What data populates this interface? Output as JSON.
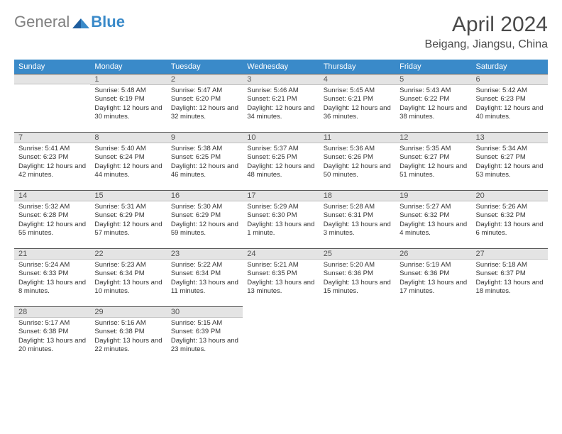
{
  "logo": {
    "general": "General",
    "blue": "Blue"
  },
  "title": "April 2024",
  "location": "Beigang, Jiangsu, China",
  "colors": {
    "header_bg": "#3a8ac9",
    "header_text": "#ffffff",
    "daybar_bg": "#e4e4e4",
    "daybar_border_top": "#5a5a5a",
    "text": "#333333",
    "title_text": "#4a4a4a"
  },
  "day_headers": [
    "Sunday",
    "Monday",
    "Tuesday",
    "Wednesday",
    "Thursday",
    "Friday",
    "Saturday"
  ],
  "weeks": [
    [
      {
        "n": "",
        "sr": "",
        "ss": "",
        "dl": ""
      },
      {
        "n": "1",
        "sr": "Sunrise: 5:48 AM",
        "ss": "Sunset: 6:19 PM",
        "dl": "Daylight: 12 hours and 30 minutes."
      },
      {
        "n": "2",
        "sr": "Sunrise: 5:47 AM",
        "ss": "Sunset: 6:20 PM",
        "dl": "Daylight: 12 hours and 32 minutes."
      },
      {
        "n": "3",
        "sr": "Sunrise: 5:46 AM",
        "ss": "Sunset: 6:21 PM",
        "dl": "Daylight: 12 hours and 34 minutes."
      },
      {
        "n": "4",
        "sr": "Sunrise: 5:45 AM",
        "ss": "Sunset: 6:21 PM",
        "dl": "Daylight: 12 hours and 36 minutes."
      },
      {
        "n": "5",
        "sr": "Sunrise: 5:43 AM",
        "ss": "Sunset: 6:22 PM",
        "dl": "Daylight: 12 hours and 38 minutes."
      },
      {
        "n": "6",
        "sr": "Sunrise: 5:42 AM",
        "ss": "Sunset: 6:23 PM",
        "dl": "Daylight: 12 hours and 40 minutes."
      }
    ],
    [
      {
        "n": "7",
        "sr": "Sunrise: 5:41 AM",
        "ss": "Sunset: 6:23 PM",
        "dl": "Daylight: 12 hours and 42 minutes."
      },
      {
        "n": "8",
        "sr": "Sunrise: 5:40 AM",
        "ss": "Sunset: 6:24 PM",
        "dl": "Daylight: 12 hours and 44 minutes."
      },
      {
        "n": "9",
        "sr": "Sunrise: 5:38 AM",
        "ss": "Sunset: 6:25 PM",
        "dl": "Daylight: 12 hours and 46 minutes."
      },
      {
        "n": "10",
        "sr": "Sunrise: 5:37 AM",
        "ss": "Sunset: 6:25 PM",
        "dl": "Daylight: 12 hours and 48 minutes."
      },
      {
        "n": "11",
        "sr": "Sunrise: 5:36 AM",
        "ss": "Sunset: 6:26 PM",
        "dl": "Daylight: 12 hours and 50 minutes."
      },
      {
        "n": "12",
        "sr": "Sunrise: 5:35 AM",
        "ss": "Sunset: 6:27 PM",
        "dl": "Daylight: 12 hours and 51 minutes."
      },
      {
        "n": "13",
        "sr": "Sunrise: 5:34 AM",
        "ss": "Sunset: 6:27 PM",
        "dl": "Daylight: 12 hours and 53 minutes."
      }
    ],
    [
      {
        "n": "14",
        "sr": "Sunrise: 5:32 AM",
        "ss": "Sunset: 6:28 PM",
        "dl": "Daylight: 12 hours and 55 minutes."
      },
      {
        "n": "15",
        "sr": "Sunrise: 5:31 AM",
        "ss": "Sunset: 6:29 PM",
        "dl": "Daylight: 12 hours and 57 minutes."
      },
      {
        "n": "16",
        "sr": "Sunrise: 5:30 AM",
        "ss": "Sunset: 6:29 PM",
        "dl": "Daylight: 12 hours and 59 minutes."
      },
      {
        "n": "17",
        "sr": "Sunrise: 5:29 AM",
        "ss": "Sunset: 6:30 PM",
        "dl": "Daylight: 13 hours and 1 minute."
      },
      {
        "n": "18",
        "sr": "Sunrise: 5:28 AM",
        "ss": "Sunset: 6:31 PM",
        "dl": "Daylight: 13 hours and 3 minutes."
      },
      {
        "n": "19",
        "sr": "Sunrise: 5:27 AM",
        "ss": "Sunset: 6:32 PM",
        "dl": "Daylight: 13 hours and 4 minutes."
      },
      {
        "n": "20",
        "sr": "Sunrise: 5:26 AM",
        "ss": "Sunset: 6:32 PM",
        "dl": "Daylight: 13 hours and 6 minutes."
      }
    ],
    [
      {
        "n": "21",
        "sr": "Sunrise: 5:24 AM",
        "ss": "Sunset: 6:33 PM",
        "dl": "Daylight: 13 hours and 8 minutes."
      },
      {
        "n": "22",
        "sr": "Sunrise: 5:23 AM",
        "ss": "Sunset: 6:34 PM",
        "dl": "Daylight: 13 hours and 10 minutes."
      },
      {
        "n": "23",
        "sr": "Sunrise: 5:22 AM",
        "ss": "Sunset: 6:34 PM",
        "dl": "Daylight: 13 hours and 11 minutes."
      },
      {
        "n": "24",
        "sr": "Sunrise: 5:21 AM",
        "ss": "Sunset: 6:35 PM",
        "dl": "Daylight: 13 hours and 13 minutes."
      },
      {
        "n": "25",
        "sr": "Sunrise: 5:20 AM",
        "ss": "Sunset: 6:36 PM",
        "dl": "Daylight: 13 hours and 15 minutes."
      },
      {
        "n": "26",
        "sr": "Sunrise: 5:19 AM",
        "ss": "Sunset: 6:36 PM",
        "dl": "Daylight: 13 hours and 17 minutes."
      },
      {
        "n": "27",
        "sr": "Sunrise: 5:18 AM",
        "ss": "Sunset: 6:37 PM",
        "dl": "Daylight: 13 hours and 18 minutes."
      }
    ],
    [
      {
        "n": "28",
        "sr": "Sunrise: 5:17 AM",
        "ss": "Sunset: 6:38 PM",
        "dl": "Daylight: 13 hours and 20 minutes."
      },
      {
        "n": "29",
        "sr": "Sunrise: 5:16 AM",
        "ss": "Sunset: 6:38 PM",
        "dl": "Daylight: 13 hours and 22 minutes."
      },
      {
        "n": "30",
        "sr": "Sunrise: 5:15 AM",
        "ss": "Sunset: 6:39 PM",
        "dl": "Daylight: 13 hours and 23 minutes."
      },
      {
        "n": "",
        "sr": "",
        "ss": "",
        "dl": ""
      },
      {
        "n": "",
        "sr": "",
        "ss": "",
        "dl": ""
      },
      {
        "n": "",
        "sr": "",
        "ss": "",
        "dl": ""
      },
      {
        "n": "",
        "sr": "",
        "ss": "",
        "dl": ""
      }
    ]
  ]
}
